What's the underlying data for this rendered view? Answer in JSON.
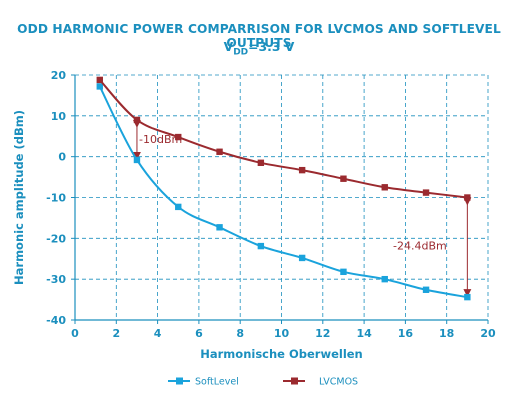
{
  "chart_data": {
    "type": "line",
    "title": "ODD HARMONIC POWER COMPARRISON FOR LVCMOS AND SOFTLEVEL OUTPUTS",
    "subtitle_main": "V",
    "subtitle_sub": "DD",
    "subtitle_tail": "=3.3 V",
    "xlabel": "Harmonische Oberwellen",
    "ylabel": "Harmonic amplitude (dBm)",
    "xlim": [
      0,
      20
    ],
    "ylim": [
      -40,
      20
    ],
    "xticks": [
      0,
      2,
      4,
      6,
      8,
      10,
      12,
      14,
      16,
      18,
      20
    ],
    "yticks": [
      20,
      10,
      0,
      -10,
      -20,
      -30,
      -40
    ],
    "grid": true,
    "legend_position": "bottom",
    "series": [
      {
        "name": "SoftLevel",
        "color": "#1aa3dc",
        "marker": "square",
        "points": [
          [
            1.2,
            17.2
          ],
          [
            3,
            -0.8
          ],
          [
            5,
            -12.3
          ],
          [
            7,
            -17.3
          ],
          [
            9,
            -21.9
          ],
          [
            11,
            -24.8
          ],
          [
            13,
            -28.2
          ],
          [
            15,
            -30
          ],
          [
            17,
            -32.6
          ],
          [
            19,
            -34.4
          ]
        ]
      },
      {
        "name": "LVCMOS",
        "color": "#9b2a2f",
        "marker": "square",
        "points": [
          [
            1.2,
            18.8
          ],
          [
            3,
            9
          ],
          [
            5,
            4.8
          ],
          [
            7,
            1.2
          ],
          [
            9,
            -1.5
          ],
          [
            11,
            -3.3
          ],
          [
            13,
            -5.4
          ],
          [
            15,
            -7.5
          ],
          [
            17,
            -8.8
          ],
          [
            19,
            -10
          ]
        ]
      }
    ],
    "annotations": [
      {
        "text": "-10dBm",
        "x": 3,
        "y_from": 9,
        "y_to": -0.8,
        "label_x": 3.1,
        "label_y": 3.3
      },
      {
        "text": "-24.4dBm",
        "x": 19,
        "y_from": -10,
        "y_to": -34.4,
        "label_x": 15.4,
        "label_y": -22.7
      }
    ]
  }
}
